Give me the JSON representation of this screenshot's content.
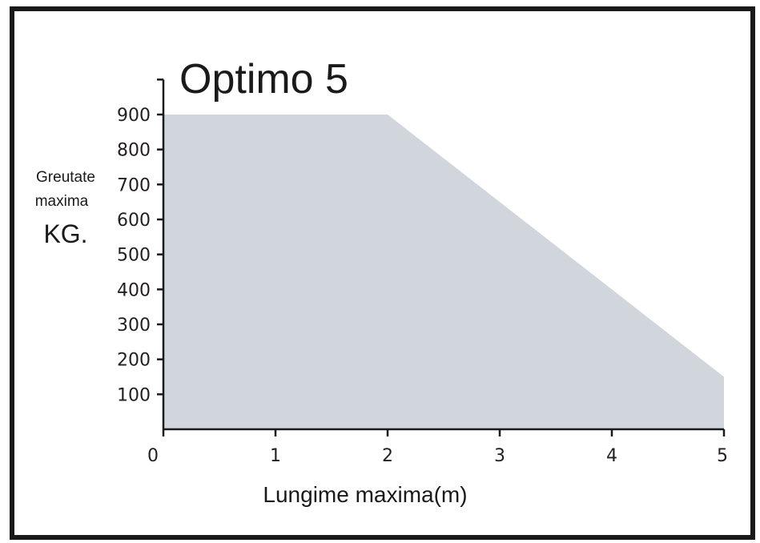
{
  "chart_data": {
    "type": "area",
    "title": "Optimo 5",
    "xlabel": "Lungime maxima(m)",
    "ylabel_lines": [
      "Greutate",
      "maxima",
      "KG."
    ],
    "x": [
      0,
      2,
      5
    ],
    "values": [
      900,
      900,
      150
    ],
    "xlim": [
      0,
      5
    ],
    "ylim": [
      0,
      1000
    ],
    "x_ticks": [
      0,
      1,
      2,
      3,
      4,
      5
    ],
    "y_ticks": [
      100,
      200,
      300,
      400,
      500,
      600,
      700,
      800,
      900
    ],
    "grid": false,
    "legend": "none",
    "fill_color": "#d1d5dc",
    "frame_color": "#1a1a1a"
  }
}
